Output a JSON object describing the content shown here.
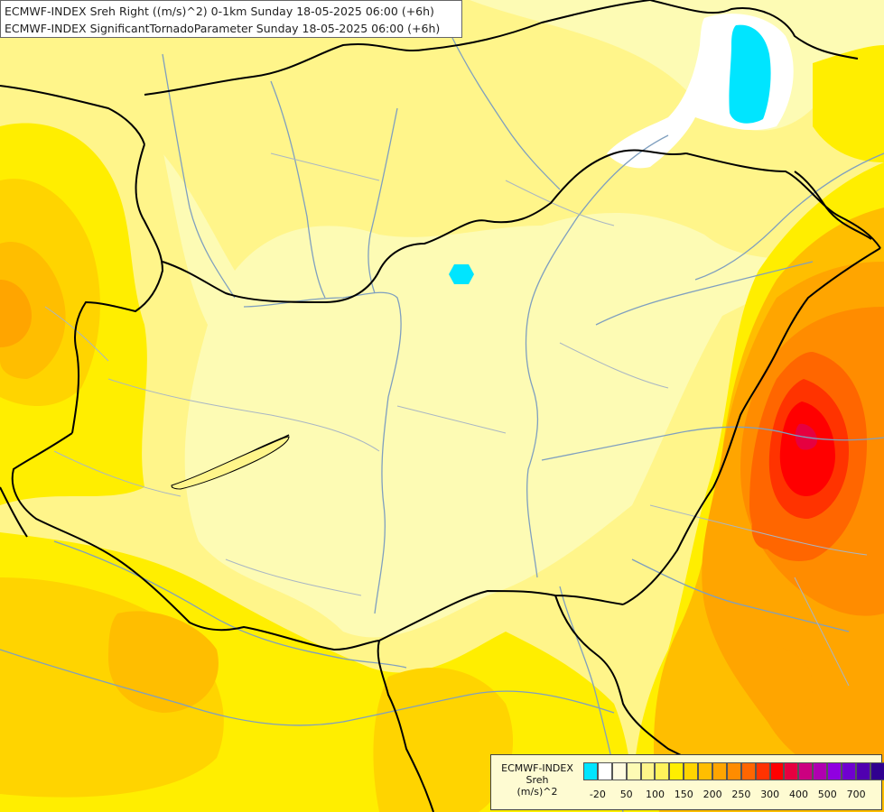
{
  "title": {
    "line1": "ECMWF-INDEX Sreh Right ((m/s)^2) 0-1km Sunday 18-05-2025 06:00 (+6h)",
    "line2": "ECMWF-INDEX SignificantTornadoParameter Sunday 18-05-2025 06:00 (+6h)"
  },
  "legend": {
    "title_line1": "ECMWF-INDEX",
    "title_line2": "Sreh",
    "title_line3": "(m/s)^2",
    "colors": [
      "#00e5ff",
      "#ffffff",
      "#fffbe0",
      "#fdfbb4",
      "#fff58a",
      "#fff35a",
      "#ffee00",
      "#ffd400",
      "#ffbe00",
      "#ffa500",
      "#ff8c00",
      "#ff6600",
      "#ff3300",
      "#ff0000",
      "#e60040",
      "#cc0080",
      "#b000b0",
      "#9000e0",
      "#7000d0",
      "#5000b0",
      "#30008f"
    ],
    "tick_labels": [
      "-20",
      "50",
      "100",
      "150",
      "200",
      "250",
      "300",
      "400",
      "500",
      "700"
    ]
  },
  "map": {
    "field_colors": {
      "pale": "#fdfbb4",
      "light": "#fff58a",
      "yellow": "#ffee00",
      "gold": "#ffd400",
      "amber": "#ffbe00",
      "orange": "#ffa500",
      "deep_orange": "#ff6600",
      "red_orange": "#ff3300",
      "red": "#ff0000",
      "magenta": "#e60040",
      "cyan": "#00e5ff",
      "white": "#ffffff"
    },
    "border_color": "#000000",
    "river_color": "#7f9fbf",
    "admin_color": "#a9b6c4"
  }
}
